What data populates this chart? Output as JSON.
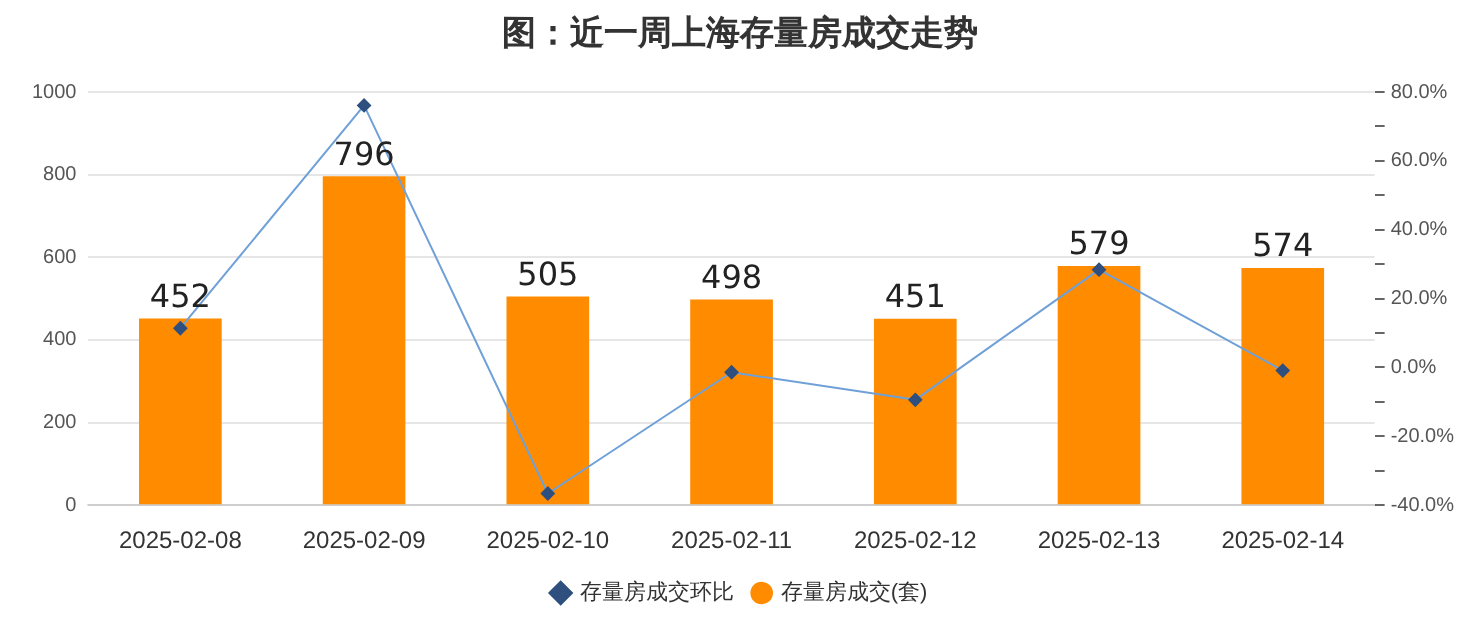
{
  "chart_data": {
    "type": "bar",
    "title": "图：近一周上海存量房成交走势",
    "categories": [
      "2025-02-08",
      "2025-02-09",
      "2025-02-10",
      "2025-02-11",
      "2025-02-12",
      "2025-02-13",
      "2025-02-14"
    ],
    "series": [
      {
        "name": "存量房成交(套)",
        "color": "#ff8c00",
        "values": [
          452,
          796,
          505,
          498,
          451,
          579,
          574
        ],
        "value_labels": [
          "452",
          "796",
          "505",
          "498",
          "451",
          "579",
          "574"
        ]
      },
      {
        "name": "存量房成交环比",
        "type": "line",
        "axis": "y2",
        "color": "#6fa0d8",
        "marker": "diamond",
        "values": [
          11.4,
          76.1,
          -36.6,
          -1.4,
          -9.4,
          28.4,
          -0.9
        ]
      }
    ],
    "ylim": [
      0,
      1000
    ],
    "yticks": [
      0,
      200,
      400,
      600,
      800,
      1000
    ],
    "y2lim": [
      -40,
      80
    ],
    "y2ticks": [
      {
        "value": -40,
        "label": "-40.0%"
      },
      {
        "value": -30,
        "label": null
      },
      {
        "value": -20,
        "label": "-20.0%"
      },
      {
        "value": -10,
        "label": null
      },
      {
        "value": 0,
        "label": "0.0%"
      },
      {
        "value": 10,
        "label": null
      },
      {
        "value": 20,
        "label": "20.0%"
      },
      {
        "value": 30,
        "label": null
      },
      {
        "value": 40,
        "label": "40.0%"
      },
      {
        "value": 50,
        "label": null
      },
      {
        "value": 60,
        "label": "60.0%"
      },
      {
        "value": 70,
        "label": null
      },
      {
        "value": 80,
        "label": "80.0%"
      }
    ],
    "grid": "y",
    "legend": "bottom"
  }
}
